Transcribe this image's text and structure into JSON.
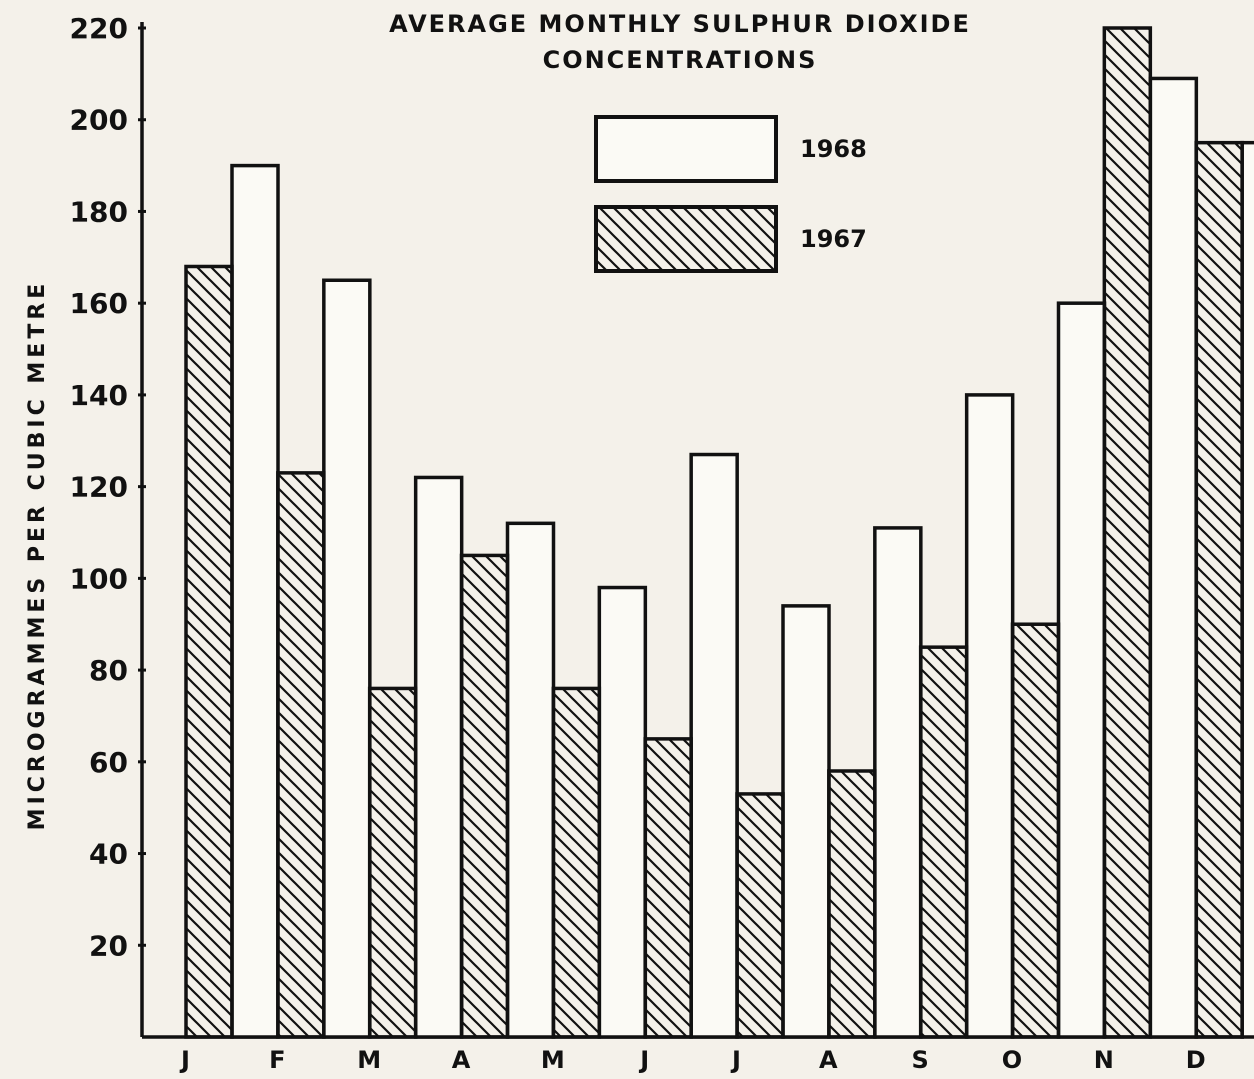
{
  "chart_data": {
    "type": "bar",
    "title": [
      "AVERAGE MONTHLY SULPHUR DIOXIDE",
      "CONCENTRATIONS"
    ],
    "xlabel": "",
    "ylabel": "MICROGRAMMES PER CUBIC METRE",
    "ylim": [
      0,
      220
    ],
    "yticks": [
      "20",
      "40",
      "60",
      "80",
      "100",
      "120",
      "140",
      "160",
      "180",
      "200",
      "220"
    ],
    "categories": [
      "J",
      "F",
      "M",
      "A",
      "M",
      "J",
      "J",
      "A",
      "S",
      "O",
      "N",
      "D"
    ],
    "legend_position": "top-center",
    "grid": false,
    "series": [
      {
        "name": "1968",
        "style": "plain",
        "values": [
          190,
          165,
          122,
          112,
          98,
          127,
          94,
          111,
          140,
          160,
          209,
          195
        ]
      },
      {
        "name": "1967",
        "style": "hatched",
        "values": [
          168,
          123,
          76,
          105,
          76,
          65,
          53,
          58,
          85,
          90,
          220,
          195
        ]
      }
    ]
  }
}
